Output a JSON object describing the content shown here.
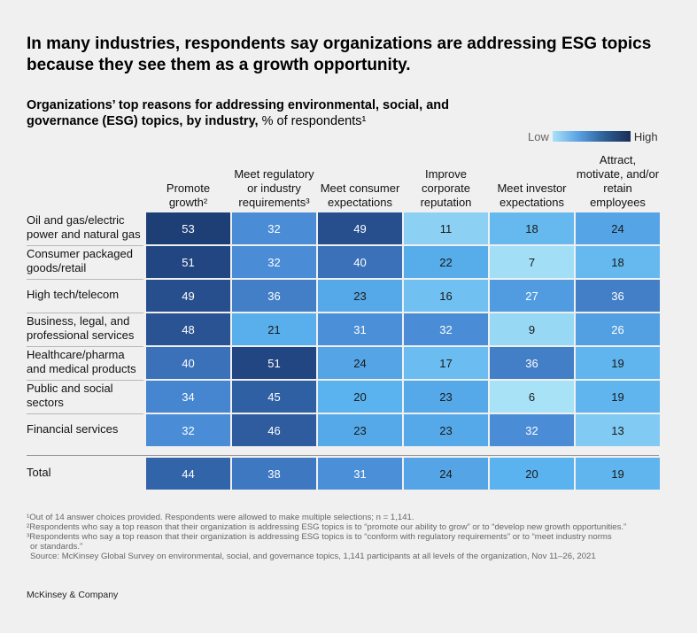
{
  "headline": "In many industries, respondents say organizations are addressing ESG topics because they see them as a growth opportunity.",
  "subtitle_bold": "Organizations’ top reasons for addressing environmental, social, and governance (ESG) topics, by industry,",
  "subtitle_unit": " % of respondents¹",
  "legend": {
    "low": "Low",
    "high": "High"
  },
  "colors": {
    "low": "#a8e2f7",
    "mid": "#5aa0e3",
    "dark": "#2c5f96",
    "high": "#1b2e57",
    "text_dark": "#1a1a1a",
    "text_light": "#ffffff"
  },
  "chart_data": {
    "type": "heatmap",
    "title": "Organizations’ top reasons for addressing environmental, social, and governance (ESG) topics, by industry, % of respondents¹",
    "columns": [
      "Promote growth²",
      "Meet regulatory or industry requirements³",
      "Meet consumer expectations",
      "Improve corporate reputation",
      "Meet investor expectations",
      "Attract, motivate, and/or retain employees"
    ],
    "rows": [
      {
        "label": "Oil and gas/electric power and natural gas",
        "values": [
          53,
          32,
          49,
          11,
          18,
          24
        ]
      },
      {
        "label": "Consumer packaged goods/retail",
        "values": [
          51,
          32,
          40,
          22,
          7,
          18
        ]
      },
      {
        "label": "High tech/telecom",
        "values": [
          49,
          36,
          23,
          16,
          27,
          36
        ]
      },
      {
        "label": "Business, legal, and professional services",
        "values": [
          48,
          21,
          31,
          32,
          9,
          26
        ]
      },
      {
        "label": "Healthcare/pharma and medical products",
        "values": [
          40,
          51,
          24,
          17,
          36,
          19
        ]
      },
      {
        "label": "Public and social sectors",
        "values": [
          34,
          45,
          20,
          23,
          6,
          19
        ]
      },
      {
        "label": "Financial services",
        "values": [
          32,
          46,
          23,
          23,
          32,
          13
        ]
      }
    ],
    "total": {
      "label": "Total",
      "values": [
        44,
        38,
        31,
        24,
        20,
        19
      ]
    }
  },
  "footnotes": [
    "¹Out of 14 answer choices provided. Respondents were allowed to make multiple selections; n = 1,141.",
    "²Respondents who say a top reason that their organization is addressing ESG topics is to “promote our ability to grow” or to “develop new growth opportunities.”",
    "³Respondents who say a top reason that their organization is addressing ESG topics is to “conform with regulatory requirements” or to “meet industry norms",
    "or standards.”",
    "Source: McKinsey Global Survey on environmental, social, and governance topics, 1,141 participants at all levels of the organization, Nov 11–26, 2021"
  ],
  "brand": "McKinsey & Company"
}
